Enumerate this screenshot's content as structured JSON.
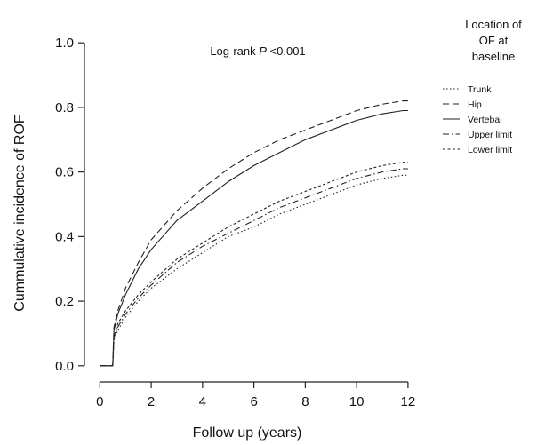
{
  "chart_data": {
    "type": "line",
    "title": "",
    "xlabel": "Follow up (years)",
    "ylabel": "Cummulative incidence of ROF",
    "xlim": [
      -0.6,
      12.8
    ],
    "ylim": [
      -0.05,
      1.05
    ],
    "x_ticks": [
      "0",
      "2",
      "4",
      "6",
      "8",
      "10",
      "12"
    ],
    "y_ticks": [
      "0.0",
      "0.2",
      "0.4",
      "0.6",
      "0.8",
      "1.0"
    ],
    "grid": false,
    "annotation": {
      "prefix": "Log-rank ",
      "italic": "P",
      "suffix": " <0.001"
    },
    "legend": {
      "title": [
        "Location of",
        "OF at",
        "baseline"
      ],
      "placement": "right"
    },
    "series": [
      {
        "name": "Trunk",
        "dash": "dotted",
        "x": [
          0.0,
          0.5,
          0.55,
          0.7,
          1,
          1.5,
          2,
          3,
          4,
          5,
          6,
          7,
          8,
          9,
          10,
          11,
          11.8,
          12
        ],
        "y": [
          0.0,
          0.0,
          0.08,
          0.11,
          0.15,
          0.2,
          0.24,
          0.3,
          0.35,
          0.4,
          0.43,
          0.47,
          0.5,
          0.53,
          0.56,
          0.58,
          0.59,
          0.59
        ]
      },
      {
        "name": "Hip",
        "dash": "dashed",
        "x": [
          0.0,
          0.5,
          0.55,
          0.7,
          1,
          1.5,
          2,
          3,
          4,
          5,
          6,
          7,
          8,
          9,
          10,
          11,
          11.8,
          12
        ],
        "y": [
          0.0,
          0.0,
          0.12,
          0.17,
          0.24,
          0.32,
          0.39,
          0.48,
          0.55,
          0.61,
          0.66,
          0.7,
          0.73,
          0.76,
          0.79,
          0.81,
          0.82,
          0.82
        ]
      },
      {
        "name": "Vertebal",
        "dash": "solid",
        "x": [
          0.0,
          0.5,
          0.55,
          0.7,
          1,
          1.5,
          2,
          3,
          4,
          5,
          6,
          7,
          8,
          9,
          10,
          11,
          11.8,
          12
        ],
        "y": [
          0.0,
          0.0,
          0.11,
          0.16,
          0.22,
          0.3,
          0.36,
          0.45,
          0.51,
          0.57,
          0.62,
          0.66,
          0.7,
          0.73,
          0.76,
          0.78,
          0.79,
          0.79
        ]
      },
      {
        "name": "Upper limit",
        "dash": "dashdot",
        "x": [
          0.0,
          0.5,
          0.55,
          0.7,
          1,
          1.5,
          2,
          3,
          4,
          5,
          6,
          7,
          8,
          9,
          10,
          11,
          11.8,
          12
        ],
        "y": [
          0.0,
          0.0,
          0.09,
          0.12,
          0.16,
          0.21,
          0.25,
          0.32,
          0.37,
          0.41,
          0.45,
          0.49,
          0.52,
          0.55,
          0.58,
          0.6,
          0.61,
          0.61
        ]
      },
      {
        "name": "Lower limit",
        "dash": "shortdash",
        "x": [
          0.0,
          0.5,
          0.55,
          0.7,
          1,
          1.5,
          2,
          3,
          4,
          5,
          6,
          7,
          8,
          9,
          10,
          11,
          11.8,
          12
        ],
        "y": [
          0.0,
          0.0,
          0.09,
          0.13,
          0.17,
          0.22,
          0.26,
          0.33,
          0.38,
          0.43,
          0.47,
          0.51,
          0.54,
          0.57,
          0.6,
          0.62,
          0.63,
          0.63
        ]
      }
    ]
  }
}
